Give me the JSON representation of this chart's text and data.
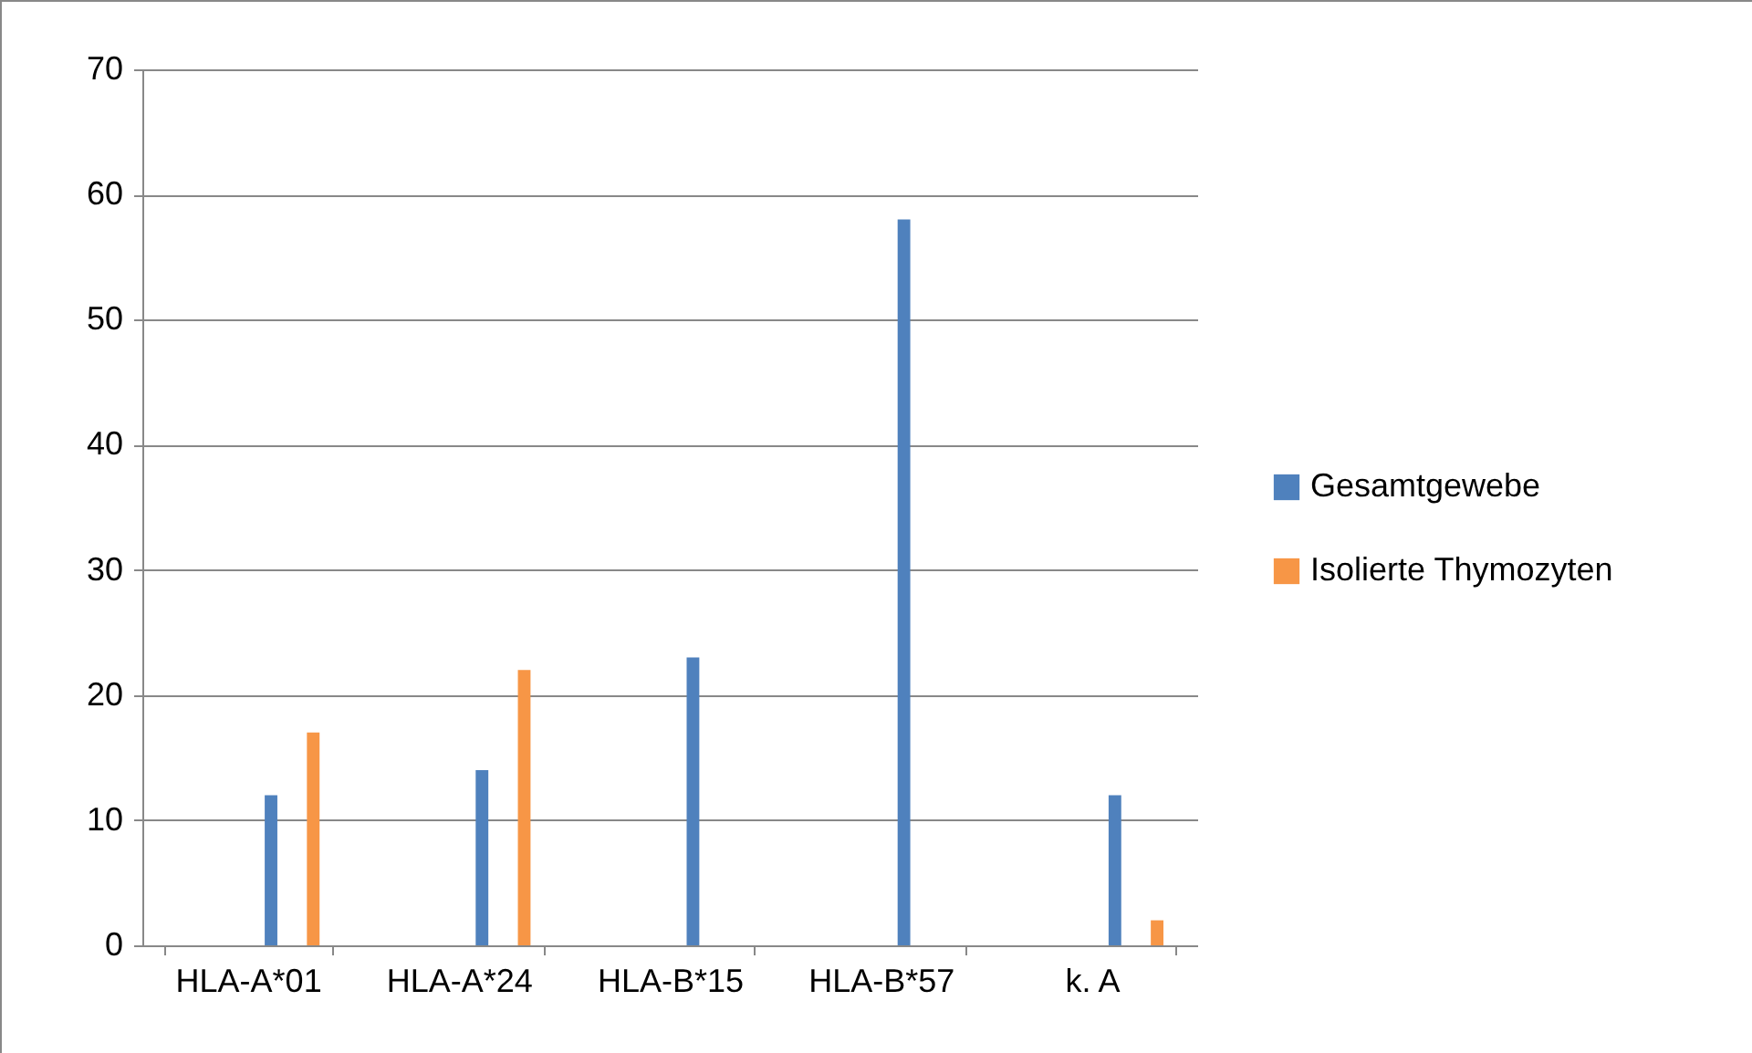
{
  "chart_data": {
    "type": "bar",
    "categories": [
      "HLA-A*01",
      "HLA-A*24",
      "HLA-B*15",
      "HLA-B*57",
      "k. A"
    ],
    "series": [
      {
        "name": "Gesamtgewebe",
        "color": "#4f81bd",
        "values": [
          12,
          14,
          23,
          58,
          12
        ]
      },
      {
        "name": "Isolierte Thymozyten",
        "color": "#f79646",
        "values": [
          17,
          22,
          0,
          0,
          2
        ]
      }
    ],
    "ylim": [
      0,
      70
    ],
    "yticks": [
      0,
      10,
      20,
      30,
      40,
      50,
      60,
      70
    ],
    "grid": "y",
    "legend": "right"
  }
}
